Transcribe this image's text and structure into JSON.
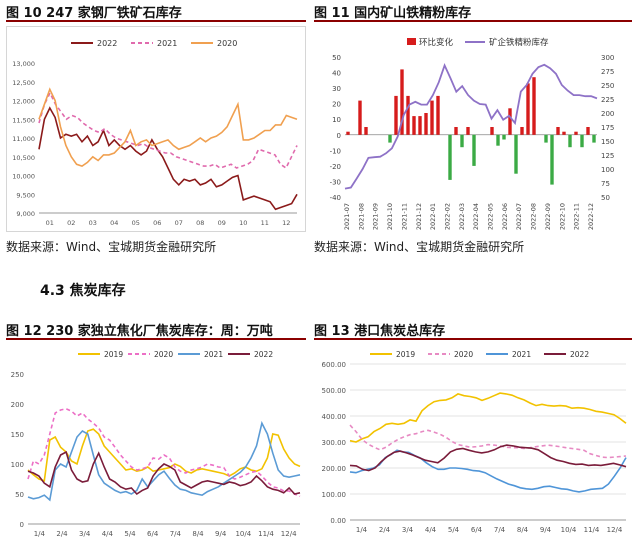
{
  "page": {
    "section_heading": "4.3 焦炭库存"
  },
  "figures": [
    {
      "id": "fig10",
      "title": "图 10 247 家钢厂铁矿石库存",
      "source": "数据来源：Wind、宝城期货金融研究所"
    },
    {
      "id": "fig11",
      "title": "图 11 国内矿山铁精粉库存",
      "source": "数据来源：Wind、宝城期货金融研究所"
    },
    {
      "id": "fig12",
      "title": "图 12 230 家独立焦化厂焦炭库存：周：万吨"
    },
    {
      "id": "fig13",
      "title": "图 13 港口焦炭总库存"
    }
  ],
  "chart_data": [
    {
      "type": "line",
      "series": [
        {
          "name": "2022",
          "color": "#8B1A1A",
          "values": [
            10700,
            11500,
            11800,
            11550,
            11000,
            11100,
            11050,
            11100,
            10900,
            11050,
            10800,
            10900,
            11200,
            10800,
            10950,
            10800,
            10700,
            10800,
            10650,
            10550,
            10650,
            10950,
            10700,
            10500,
            10200,
            9900,
            9750,
            9900,
            9850,
            9900,
            9750,
            9800,
            9900,
            9700,
            9750,
            9850,
            9950,
            10000,
            9350,
            9400,
            9450,
            9400,
            9350,
            9300,
            9100,
            9150,
            9200,
            9250,
            9500
          ]
        },
        {
          "name": "2021",
          "color": "#E06AAD",
          "values": [
            11400,
            11900,
            12200,
            11900,
            11700,
            11500,
            11600,
            11550,
            11400,
            11300,
            11200,
            11150,
            11250,
            11100,
            11000,
            10950,
            10900,
            10850,
            10800,
            10850,
            10750,
            10700,
            10650,
            10600,
            10600,
            10500,
            10450,
            10400,
            10350,
            10300,
            10250,
            10250,
            10300,
            10200,
            10250,
            10300,
            10200,
            10250,
            10300,
            10400,
            10700,
            10650,
            10600,
            10550,
            10300,
            10200,
            10500,
            10800
          ]
        },
        {
          "name": "2020",
          "color": "#F0A050",
          "values": [
            11500,
            11900,
            12300,
            12000,
            11300,
            10800,
            10500,
            10300,
            10250,
            10350,
            10500,
            10400,
            10550,
            10550,
            10600,
            10750,
            10900,
            11200,
            10800,
            10900,
            10950,
            10800,
            10850,
            10900,
            10950,
            10800,
            10700,
            10750,
            10800,
            10900,
            11000,
            10900,
            11000,
            11050,
            11150,
            11300,
            11600,
            11900,
            10950,
            10950,
            11000,
            11100,
            11200,
            11200,
            11350,
            11350,
            11600,
            11550,
            11500
          ]
        }
      ],
      "x_ticks": [
        "01",
        "02",
        "03",
        "04",
        "05",
        "06",
        "07",
        "08",
        "09",
        "10",
        "11",
        "12"
      ],
      "y_ticks": [
        "9,000",
        "9,500",
        "10,000",
        "10,500",
        "11,000",
        "11,500",
        "12,000",
        "12,500",
        "13,000"
      ],
      "ylim": [
        9000,
        13000
      ]
    },
    {
      "type": "bar",
      "series": [
        {
          "name": "环比变化",
          "color": "#D61C1C",
          "axis": "left",
          "values": [
            2,
            0,
            22,
            5,
            0,
            0,
            0,
            -5,
            25,
            42,
            25,
            12,
            12,
            14,
            22,
            25,
            0,
            -29,
            5,
            -8,
            5,
            -20,
            0,
            0,
            5,
            -7,
            -3,
            17,
            -25,
            5,
            33,
            37,
            0,
            -5,
            -32,
            5,
            2,
            -8,
            2,
            -8,
            5,
            -5
          ]
        },
        {
          "name": "矿企铁精粉库存",
          "color": "#8E72C7",
          "axis": "right",
          "values": [
            65,
            67,
            83,
            100,
            120,
            121,
            122,
            128,
            137,
            158,
            196,
            215,
            220,
            215,
            215,
            232,
            255,
            285,
            262,
            238,
            248,
            232,
            222,
            216,
            215,
            190,
            205,
            188,
            195,
            182,
            238,
            250,
            270,
            282,
            286,
            280,
            270,
            250,
            240,
            232,
            232,
            230,
            230,
            226
          ]
        }
      ],
      "x_ticks": [
        "2021-07",
        "2021-08",
        "2021-09",
        "2021-10",
        "2021-11",
        "2021-12",
        "2022-01",
        "2022-02",
        "2022-03",
        "2022-04",
        "2022-05",
        "2022-06",
        "2022-07",
        "2022-08",
        "2022-09",
        "2022-10",
        "2022-11",
        "2022-12"
      ],
      "y_left_ticks": [
        "-40",
        "-30",
        "-20",
        "-10",
        "0",
        "10",
        "20",
        "30",
        "40",
        "50"
      ],
      "y_right_ticks": [
        "50",
        "75",
        "100",
        "125",
        "150",
        "175",
        "200",
        "225",
        "250",
        "275",
        "300"
      ],
      "ylim_left": [
        -40,
        50
      ],
      "ylim_right": [
        50,
        300
      ]
    },
    {
      "type": "line",
      "series": [
        {
          "name": "2019",
          "color": "#F2C200",
          "values": [
            90,
            82,
            75,
            72,
            140,
            145,
            128,
            120,
            105,
            100,
            130,
            155,
            158,
            150,
            130,
            120,
            110,
            100,
            90,
            92,
            88,
            90,
            95,
            88,
            90,
            92,
            94,
            100,
            96,
            88,
            85,
            90,
            92,
            90,
            88,
            86,
            84,
            80,
            85,
            92,
            95,
            90,
            88,
            92,
            110,
            150,
            148,
            125,
            110,
            100,
            96
          ]
        },
        {
          "name": "2020",
          "color": "#EC6FC6",
          "values": [
            75,
            105,
            100,
            115,
            150,
            185,
            190,
            192,
            188,
            180,
            185,
            175,
            168,
            160,
            145,
            140,
            128,
            115,
            105,
            95,
            90,
            92,
            95,
            110,
            108,
            115,
            110,
            95,
            88,
            85,
            90,
            92,
            95,
            100,
            98,
            95,
            94,
            80,
            75,
            78,
            82,
            86,
            88,
            80,
            70,
            62,
            60,
            55,
            55,
            50,
            46
          ]
        },
        {
          "name": "2021",
          "color": "#5B9BD5",
          "values": [
            45,
            42,
            44,
            48,
            40,
            90,
            100,
            95,
            120,
            145,
            155,
            150,
            115,
            82,
            68,
            62,
            56,
            52,
            54,
            50,
            56,
            75,
            62,
            72,
            82,
            88,
            76,
            65,
            58,
            56,
            52,
            50,
            48,
            54,
            58,
            62,
            68,
            74,
            80,
            86,
            95,
            110,
            130,
            168,
            150,
            118,
            90,
            80,
            78,
            80,
            82
          ]
        },
        {
          "name": "2022",
          "color": "#7A1C3A",
          "values": [
            88,
            85,
            80,
            68,
            62,
            95,
            115,
            120,
            90,
            75,
            70,
            72,
            100,
            118,
            95,
            75,
            70,
            62,
            58,
            60,
            50,
            56,
            60,
            80,
            92,
            100,
            96,
            90,
            70,
            65,
            60,
            65,
            70,
            72,
            70,
            68,
            66,
            70,
            68,
            64,
            66,
            70,
            80,
            72,
            62,
            58,
            56,
            52,
            60,
            50,
            52
          ]
        }
      ],
      "x_ticks": [
        "1/4",
        "2/4",
        "3/4",
        "4/4",
        "5/4",
        "6/4",
        "7/4",
        "8/4",
        "9/4",
        "10/4",
        "11/4",
        "12/4"
      ],
      "y_ticks": [
        "0",
        "50",
        "100",
        "150",
        "200",
        "250"
      ],
      "ylim": [
        0,
        250
      ]
    },
    {
      "type": "line",
      "series": [
        {
          "name": "2019",
          "color": "#F2C200",
          "values": [
            305,
            300,
            312,
            320,
            340,
            352,
            368,
            372,
            368,
            372,
            385,
            380,
            420,
            440,
            455,
            460,
            462,
            470,
            485,
            478,
            475,
            470,
            460,
            468,
            478,
            488,
            485,
            480,
            470,
            462,
            450,
            440,
            445,
            440,
            438,
            440,
            438,
            430,
            432,
            430,
            425,
            418,
            415,
            410,
            405,
            390,
            372
          ]
        },
        {
          "name": "2020",
          "color": "#E78AC3",
          "values": [
            365,
            340,
            310,
            292,
            280,
            270,
            280,
            296,
            310,
            320,
            328,
            332,
            340,
            345,
            338,
            330,
            318,
            302,
            290,
            285,
            280,
            282,
            285,
            290,
            288,
            285,
            280,
            278,
            278,
            275,
            278,
            282,
            285,
            288,
            285,
            282,
            278,
            275,
            272,
            268,
            255,
            248,
            242,
            240,
            242,
            244,
            246
          ]
        },
        {
          "name": "2021",
          "color": "#4F95D8",
          "values": [
            185,
            182,
            190,
            195,
            200,
            212,
            240,
            252,
            268,
            262,
            260,
            248,
            238,
            220,
            205,
            195,
            195,
            200,
            200,
            198,
            195,
            190,
            188,
            182,
            170,
            158,
            148,
            138,
            132,
            124,
            120,
            118,
            122,
            128,
            130,
            125,
            120,
            118,
            112,
            108,
            112,
            118,
            120,
            122,
            138,
            168,
            200,
            240
          ]
        },
        {
          "name": "2022",
          "color": "#7A1C3A",
          "values": [
            210,
            208,
            195,
            190,
            200,
            225,
            245,
            260,
            265,
            258,
            250,
            240,
            230,
            225,
            220,
            238,
            262,
            272,
            275,
            268,
            262,
            258,
            262,
            270,
            282,
            288,
            285,
            280,
            278,
            276,
            270,
            255,
            240,
            230,
            225,
            218,
            214,
            215,
            210,
            212,
            210,
            214,
            218,
            212,
            205
          ]
        }
      ],
      "x_ticks": [
        "1/4",
        "2/4",
        "3/4",
        "4/4",
        "5/4",
        "6/4",
        "7/4",
        "8/4",
        "9/4",
        "10/4",
        "11/4",
        "12/4"
      ],
      "y_ticks": [
        "0.00",
        "100.00",
        "200.00",
        "300.00",
        "400.00",
        "500.00",
        "600.00"
      ],
      "ylim": [
        0,
        600
      ]
    }
  ]
}
